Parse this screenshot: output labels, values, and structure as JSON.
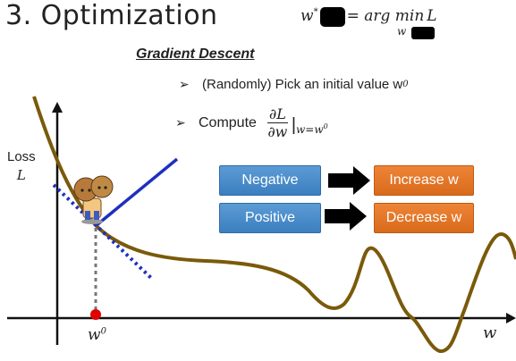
{
  "slide": {
    "title": "3. Optimization",
    "formula_lhs": "w",
    "formula_rhs": "= arg min",
    "formula_obj": "L",
    "formula_sub": "w",
    "section_title": "Gradient Descent",
    "bullet1": "(Randomly) Pick an initial value w",
    "bullet1_sup": "0",
    "bullet2_prefix": "Compute",
    "deriv_num": "∂L",
    "deriv_den": "∂w",
    "deriv_eval": "w=w",
    "deriv_eval_sup": "0",
    "axis_y_label": "Loss",
    "axis_y_symbol": "L",
    "axis_x_label": "w",
    "point_label": "w",
    "point_label_sup": "0",
    "rules": [
      {
        "condition": "Negative",
        "action": "Increase w"
      },
      {
        "condition": "Positive",
        "action": "Decrease w"
      }
    ]
  },
  "colors": {
    "curve": "#7a5a0a",
    "tangent": "#1f2fbf",
    "point": "#e00000",
    "condition_box": "#4a8ccc",
    "action_box": "#e07020"
  },
  "icons": [
    "arrow-bullet-icon",
    "right-arrow-icon",
    "character-icon"
  ]
}
